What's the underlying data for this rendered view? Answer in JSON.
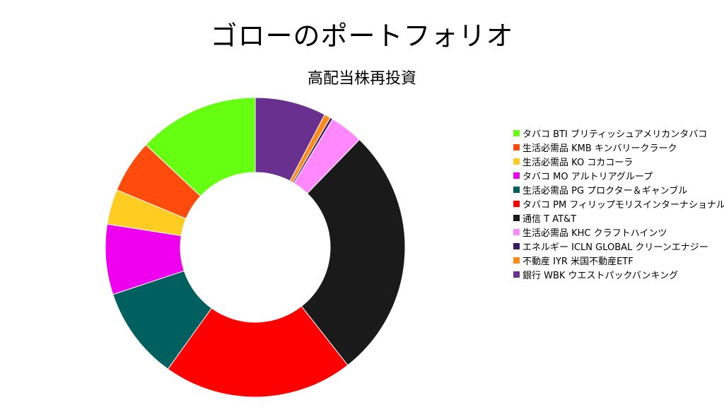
{
  "title": "ゴローのポートフォリオ",
  "chart_data": {
    "type": "pie",
    "donut": true,
    "subtitle": "高配当株再投資",
    "legend_position": "right",
    "slices": [
      {
        "label": "タバコ BTI ブリティッシュアメリカンタバコ",
        "value": 13.4,
        "color": "#66ff11"
      },
      {
        "label": "生活必需品 KMB キンバリークラーク",
        "value": 5.9,
        "color": "#ff4c0c"
      },
      {
        "label": "生活必需品 KO コカコーラ",
        "value": 3.9,
        "color": "#ffcc22"
      },
      {
        "label": "タバコ MO アルトリアグループ",
        "value": 7.8,
        "color": "#ee00ee"
      },
      {
        "label": "生活必需品 PG プロクター＆ギャンブル",
        "value": 10.3,
        "color": "#006060"
      },
      {
        "label": "タバコ PM フィリップモリスインターナショナル",
        "value": 21.1,
        "color": "#ff0000"
      },
      {
        "label": "通信 T AT&T",
        "value": 28.0,
        "color": "#1a1a1a"
      },
      {
        "label": "生活必需品 KHC クラフトハインツ",
        "value": 3.7,
        "color": "#ff88ff"
      },
      {
        "label": "エネルギー ICLN GLOBAL クリーンエナジー",
        "value": 0.3,
        "color": "#3a1a66"
      },
      {
        "label": "不動産 IYR 米国不動産ETF",
        "value": 0.7,
        "color": "#ff8c1a"
      },
      {
        "label": "銀行 WBK ウエストパックバンキング",
        "value": 7.9,
        "color": "#6a3090"
      }
    ],
    "draw_order": [
      10,
      9,
      8,
      7,
      6,
      5,
      4,
      3,
      2,
      1,
      0
    ]
  }
}
